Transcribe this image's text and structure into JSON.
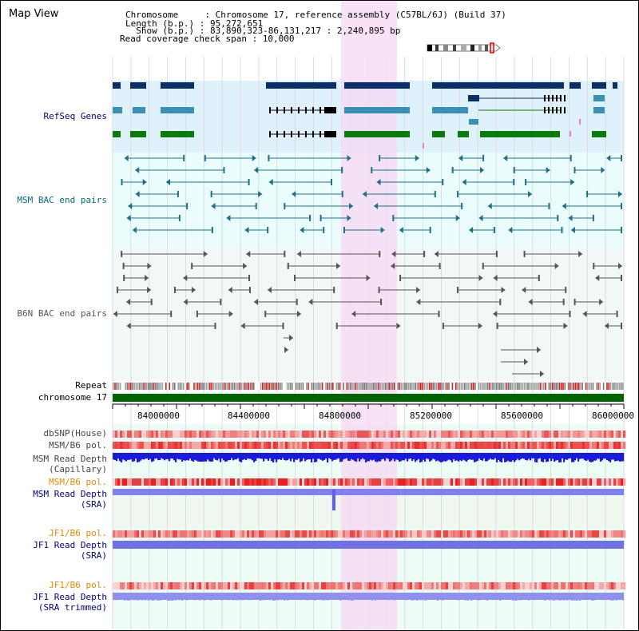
{
  "header": {
    "title": "Map View",
    "chromosome_line": "Chromosome     : Chromosome 17, reference assembly (C57BL/6J) (Build 37)",
    "length_line": "Length (b.p.) : 95,272,651",
    "show_line": "  Show (b.p.) : 83,890,323-86,131,217 : 2,240,895 bp",
    "coverage_line": "Read coverage check span : 10,000"
  },
  "tracks": {
    "refseq": "RefSeq Genes",
    "msm_bac": "MSM BAC end pairs",
    "b6n_bac": "B6N BAC end pairs",
    "repeat": "Repeat",
    "chromosome": "chromosome 17",
    "dbsnp": "dbSNP(House)",
    "msm_b6_pol_1": "MSM/B6 pol.",
    "msm_read_depth_cap_1": "MSM Read Depth",
    "msm_read_depth_cap_2": "(Capillary)",
    "msm_b6_pol_2": "MSM/B6 pol.",
    "msm_read_depth_sra_1": "MSM Read Depth",
    "msm_read_depth_sra_2": "(SRA)",
    "jf1_b6_pol_1": "JF1/B6 pol.",
    "jf1_read_depth_sra_1": "JF1 Read Depth",
    "jf1_read_depth_sra_2": "(SRA)",
    "jf1_b6_pol_2": "JF1/B6 pol.",
    "jf1_read_depth_trim_1": "JF1 Read Depth",
    "jf1_read_depth_trim_2": "(SRA trimmed)"
  },
  "axis": {
    "ticks": [
      "84000000",
      "84400000",
      "84800000",
      "85200000",
      "85600000",
      "86000000"
    ]
  },
  "colors": {
    "refseq_bg": "#dff1fb",
    "bac_bg": "#eafcfc",
    "highlight": "#f7d8f3",
    "chromosome": "#006400",
    "gene_dark": "#0b2f6b",
    "gene_mid": "#3a8fb7",
    "gene_green": "#0a7a0a",
    "msm_pair": "#1d6f8a",
    "b6n_pair": "#555555",
    "depth_blue": "#1a1adc",
    "depth_light": "#8080ee",
    "pol_red": "#e83030",
    "orange_label": "#e38b00",
    "navy_label": "#000080",
    "teal_label": "#006c7a"
  }
}
